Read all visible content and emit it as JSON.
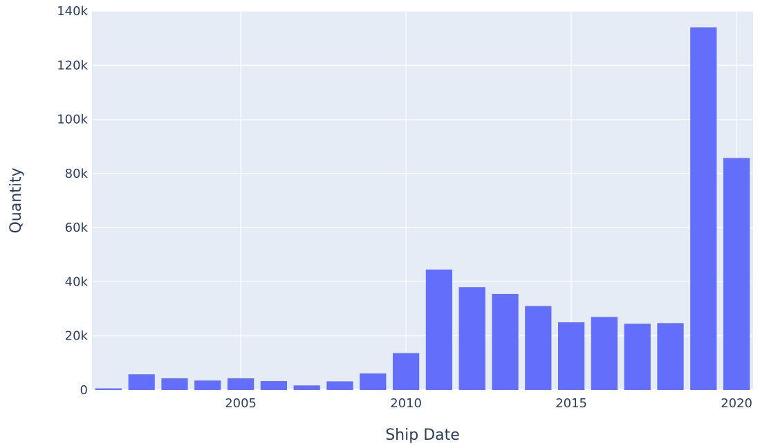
{
  "chart_data": {
    "type": "bar",
    "xlabel": "Ship Date",
    "ylabel": "Quantity",
    "title": "",
    "x": [
      2001,
      2002,
      2003,
      2004,
      2005,
      2006,
      2007,
      2008,
      2009,
      2010,
      2011,
      2012,
      2013,
      2014,
      2015,
      2016,
      2017,
      2018,
      2019,
      2020
    ],
    "values": [
      600,
      5800,
      4300,
      3500,
      4300,
      3300,
      1700,
      3200,
      6100,
      13600,
      44500,
      38000,
      35500,
      31000,
      25000,
      27000,
      24500,
      24700,
      134000,
      85700
    ],
    "xlim": [
      2000.5,
      2020.5
    ],
    "ylim": [
      0,
      140000
    ],
    "x_tick_values": [
      2005,
      2010,
      2015,
      2020
    ],
    "x_tick_labels": [
      "2005",
      "2010",
      "2015",
      "2020"
    ],
    "y_tick_values": [
      0,
      20000,
      40000,
      60000,
      80000,
      100000,
      120000,
      140000
    ],
    "y_tick_labels": [
      "0",
      "20k",
      "40k",
      "60k",
      "80k",
      "100k",
      "120k",
      "140k"
    ],
    "grid": true,
    "colors": {
      "bar": "#636efa",
      "plot_bg": "#e5ecf6",
      "grid": "#ffffff",
      "text": "#2a3f5f"
    }
  }
}
